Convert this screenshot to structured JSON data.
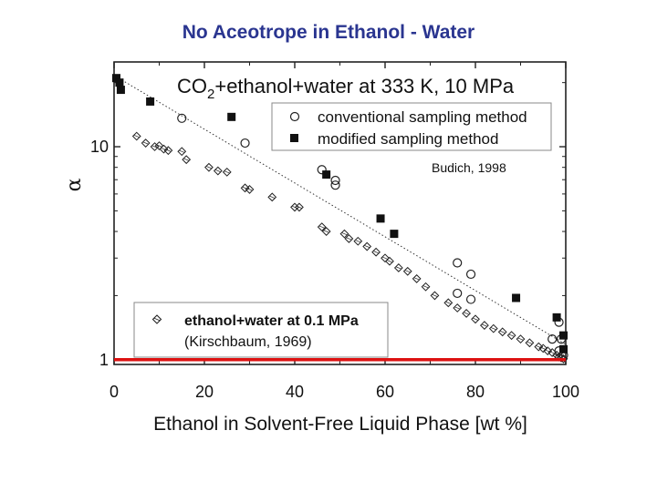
{
  "slide_title": "No Aceotrope in Ethanol - Water",
  "chart_data": {
    "type": "scatter",
    "title": "CO2+ethanol+water at 333 K, 10 MPa",
    "xlabel": "Ethanol in Solvent-Free Liquid Phase [wt %]",
    "ylabel": "α",
    "xlim": [
      0,
      100
    ],
    "ylim": [
      0.95,
      25
    ],
    "yscale": "log",
    "xticks": [
      "0",
      "20",
      "40",
      "60",
      "80",
      "100"
    ],
    "yticks": [
      "1",
      "10"
    ],
    "annotation": "Budich, 1998",
    "legend_top": [
      {
        "label": "conventional sampling method",
        "marker": "circle"
      },
      {
        "label": "modified sampling method",
        "marker": "square"
      }
    ],
    "legend_bottom": {
      "label": "ethanol+water at 0.1 MPa",
      "sublabel": "(Kirschbaum, 1969)",
      "marker": "diamond"
    },
    "reference_line": {
      "y": 1,
      "color": "#dd1111"
    },
    "series": [
      {
        "name": "conventional sampling method",
        "marker": "circle",
        "points": [
          [
            15,
            13.6
          ],
          [
            29,
            10.4
          ],
          [
            46,
            7.8
          ],
          [
            49,
            6.95
          ],
          [
            49,
            6.6
          ],
          [
            76,
            2.85
          ],
          [
            79,
            2.52
          ],
          [
            76,
            2.05
          ],
          [
            79,
            1.92
          ],
          [
            98.5,
            1.5
          ],
          [
            97,
            1.25
          ],
          [
            99,
            1.25
          ],
          [
            98.5,
            1.1
          ],
          [
            99.5,
            1.05
          ]
        ]
      },
      {
        "name": "modified sampling method",
        "marker": "square",
        "points": [
          [
            0.5,
            21
          ],
          [
            1.2,
            20
          ],
          [
            1.5,
            18.5
          ],
          [
            8,
            16.3
          ],
          [
            26,
            13.8
          ],
          [
            47,
            7.4
          ],
          [
            59,
            4.6
          ],
          [
            62,
            3.9
          ],
          [
            89,
            1.95
          ],
          [
            98,
            1.58
          ],
          [
            99.5,
            1.3
          ],
          [
            99.5,
            1.12
          ]
        ]
      },
      {
        "name": "ethanol+water at 0.1 MPa",
        "marker": "diamond",
        "points": [
          [
            5,
            11.2
          ],
          [
            7,
            10.4
          ],
          [
            9,
            10.0
          ],
          [
            10,
            10.1
          ],
          [
            11,
            9.75
          ],
          [
            12,
            9.6
          ],
          [
            15,
            9.5
          ],
          [
            16,
            8.7
          ],
          [
            21,
            8.0
          ],
          [
            23,
            7.7
          ],
          [
            25,
            7.6
          ],
          [
            29,
            6.4
          ],
          [
            30,
            6.3
          ],
          [
            35,
            5.8
          ],
          [
            40,
            5.2
          ],
          [
            41,
            5.2
          ],
          [
            46,
            4.2
          ],
          [
            47,
            4.0
          ],
          [
            51,
            3.9
          ],
          [
            52,
            3.7
          ],
          [
            54,
            3.6
          ],
          [
            56,
            3.4
          ],
          [
            58,
            3.2
          ],
          [
            60,
            3.0
          ],
          [
            61,
            2.9
          ],
          [
            63,
            2.7
          ],
          [
            65,
            2.6
          ],
          [
            67,
            2.4
          ],
          [
            69,
            2.2
          ],
          [
            71,
            2.0
          ],
          [
            74,
            1.85
          ],
          [
            76,
            1.75
          ],
          [
            78,
            1.65
          ],
          [
            80,
            1.55
          ],
          [
            82,
            1.45
          ],
          [
            84,
            1.4
          ],
          [
            86,
            1.35
          ],
          [
            88,
            1.3
          ],
          [
            90,
            1.25
          ],
          [
            92,
            1.2
          ],
          [
            94,
            1.15
          ],
          [
            95,
            1.13
          ],
          [
            96,
            1.1
          ],
          [
            97,
            1.08
          ],
          [
            98,
            1.05
          ],
          [
            98.5,
            1.03
          ],
          [
            99,
            1.02
          ],
          [
            99.5,
            1.01
          ]
        ]
      }
    ],
    "trend_line": {
      "from": [
        1,
        21
      ],
      "to": [
        100,
        1.18
      ],
      "style": "dotted"
    }
  }
}
